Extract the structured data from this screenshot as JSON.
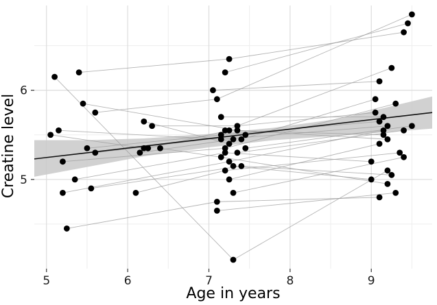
{
  "figure": {
    "kind": "ggplot-scatter-with-trajectories"
  },
  "chart_data": {
    "type": "scatter",
    "title": "",
    "xlabel": "Age in years",
    "ylabel": "Creatine level",
    "xlim": [
      4.85,
      9.75
    ],
    "ylim": [
      4.0,
      6.95
    ],
    "x_ticks": [
      5,
      6,
      7,
      8,
      9
    ],
    "y_ticks": [
      5,
      6
    ],
    "x_minor": [
      5.5,
      6.5,
      7.5,
      8.5,
      9.5
    ],
    "y_minor": [
      4.5,
      5.5,
      6.5
    ],
    "grid": "on",
    "legend": "none",
    "description": "Creatine level vs age; black dots are observations, thin gray lines connect repeated measures of the same subject, black line is linear fit with gray confidence band",
    "subjects": [
      [
        [
          5.1,
          6.15
        ],
        [
          7.3,
          4.1
        ],
        [
          9.2,
          5.1
        ]
      ],
      [
        [
          5.15,
          5.55
        ],
        [
          7.15,
          5.45
        ],
        [
          9.2,
          5.6
        ]
      ],
      [
        [
          5.2,
          4.85
        ],
        [
          7.25,
          5.2
        ],
        [
          9.15,
          5.55
        ]
      ],
      [
        [
          5.25,
          4.45
        ],
        [
          7.1,
          4.75
        ],
        [
          9.1,
          4.8
        ]
      ],
      [
        [
          5.4,
          6.2
        ],
        [
          7.25,
          6.35
        ],
        [
          9.4,
          6.65
        ]
      ],
      [
        [
          5.35,
          5.0
        ],
        [
          7.2,
          5.3
        ],
        [
          9.0,
          5.2
        ]
      ],
      [
        [
          5.45,
          5.85
        ],
        [
          7.35,
          5.55
        ],
        [
          9.2,
          5.45
        ]
      ],
      [
        [
          5.5,
          5.35
        ],
        [
          7.15,
          5.5
        ],
        [
          9.1,
          5.65
        ]
      ],
      [
        [
          5.55,
          4.9
        ],
        [
          7.4,
          5.15
        ],
        [
          9.25,
          5.05
        ]
      ],
      [
        [
          5.6,
          5.75
        ],
        [
          7.1,
          5.9
        ],
        [
          9.5,
          6.85
        ]
      ],
      [
        [
          6.1,
          4.85
        ],
        [
          7.2,
          5.1
        ],
        [
          9.35,
          5.3
        ]
      ],
      [
        [
          6.15,
          5.3
        ],
        [
          7.3,
          5.45
        ]
      ],
      [
        [
          6.25,
          5.35
        ],
        [
          7.25,
          5.55
        ],
        [
          9.15,
          5.5
        ]
      ],
      [
        [
          6.3,
          5.6
        ],
        [
          7.35,
          5.6
        ],
        [
          9.05,
          5.75
        ]
      ],
      [
        [
          6.4,
          5.35
        ],
        [
          7.15,
          5.25
        ],
        [
          9.2,
          4.95
        ]
      ],
      [
        [
          7.05,
          6.0
        ],
        [
          9.1,
          6.1
        ]
      ],
      [
        [
          7.1,
          4.65
        ],
        [
          9.3,
          4.85
        ]
      ],
      [
        [
          7.2,
          6.2
        ],
        [
          9.45,
          6.75
        ]
      ],
      [
        [
          5.2,
          5.2
        ],
        [
          7.2,
          5.35
        ],
        [
          9.3,
          5.85
        ]
      ],
      [
        [
          7.25,
          5.0
        ],
        [
          9.1,
          5.4
        ]
      ],
      [
        [
          5.05,
          5.5
        ],
        [
          6.2,
          5.35
        ]
      ],
      [
        [
          5.6,
          5.3
        ],
        [
          7.45,
          5.5
        ]
      ],
      [
        [
          7.35,
          5.3
        ],
        [
          9.4,
          5.55
        ]
      ],
      [
        [
          7.4,
          5.45
        ],
        [
          9.05,
          5.9
        ]
      ],
      [
        [
          7.15,
          5.7
        ],
        [
          9.15,
          5.7
        ]
      ],
      [
        [
          7.3,
          5.15
        ],
        [
          9.0,
          5.0
        ]
      ],
      [
        [
          7.2,
          5.55
        ],
        [
          9.25,
          6.25
        ]
      ],
      [
        [
          6.2,
          5.65
        ],
        [
          7.25,
          5.4
        ]
      ],
      [
        [
          7.3,
          4.85
        ],
        [
          9.4,
          5.25
        ]
      ],
      [
        [
          7.45,
          5.35
        ],
        [
          9.5,
          5.6
        ]
      ]
    ],
    "smooth_line": {
      "x": [
        4.85,
        9.75
      ],
      "y": [
        5.23,
        5.75
      ]
    },
    "confidence_band": {
      "x": [
        4.85,
        5.5,
        6.2,
        7.0,
        7.8,
        8.6,
        9.75
      ],
      "upper": [
        5.44,
        5.44,
        5.46,
        5.51,
        5.58,
        5.68,
        5.93
      ],
      "lower": [
        5.03,
        5.14,
        5.26,
        5.36,
        5.44,
        5.49,
        5.57
      ]
    },
    "colors": {
      "point": "#000000",
      "trajectory_line": "#9a9a9a",
      "smooth_line": "#111111",
      "band": "#c9c9c9",
      "grid_major": "#dcdcdc",
      "grid_minor": "#ededed",
      "tick": "#333333",
      "tick_label": "#1a1a1a"
    }
  }
}
